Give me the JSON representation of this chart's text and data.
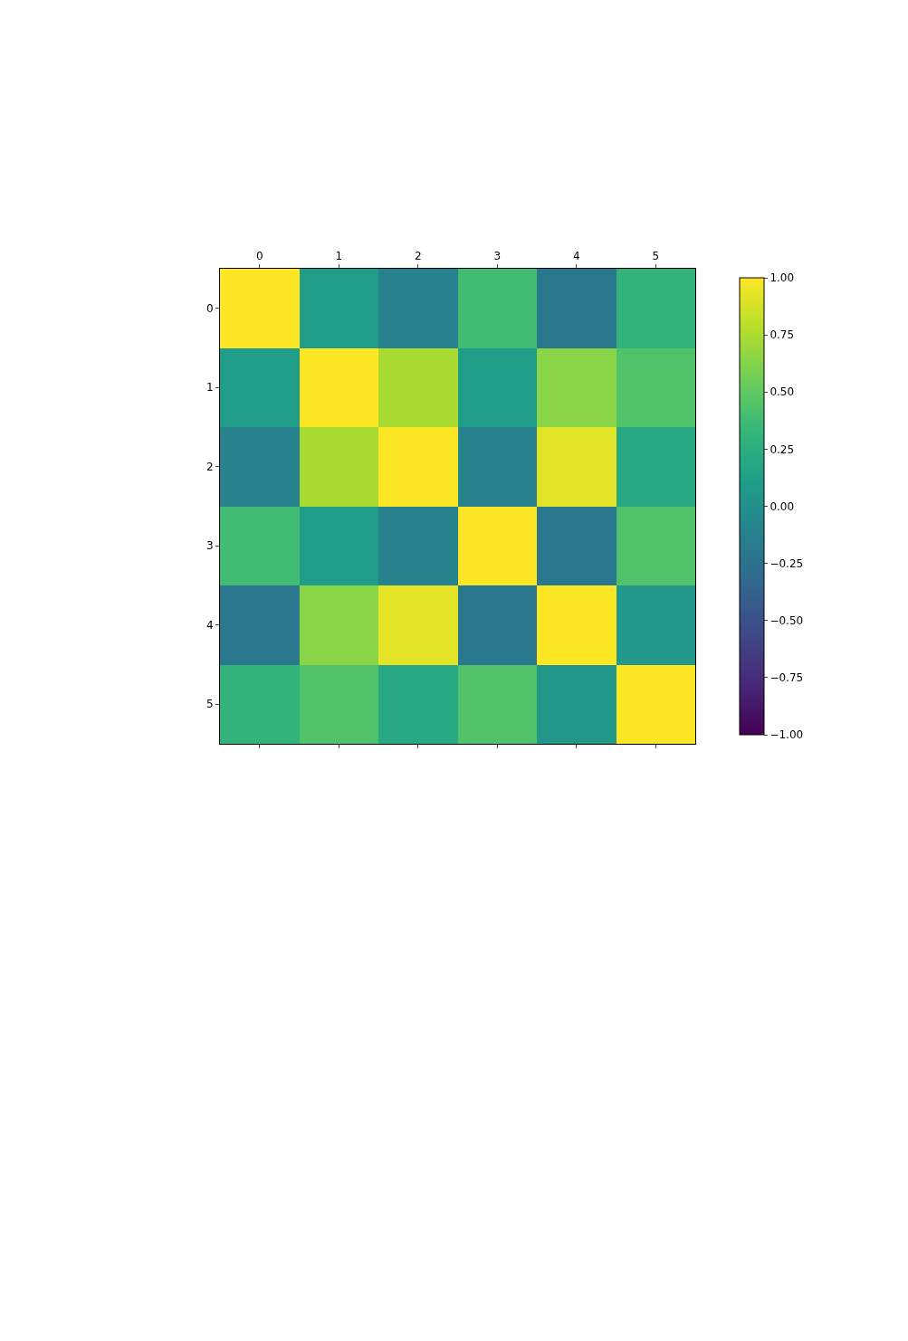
{
  "chart_data": {
    "type": "heatmap",
    "categories": [
      "0",
      "1",
      "2",
      "3",
      "4",
      "5"
    ],
    "y_categories": [
      "0",
      "1",
      "2",
      "3",
      "4",
      "5"
    ],
    "cells": [
      [
        1,
        0.1,
        -0.1,
        0.38,
        -0.2,
        0.3
      ],
      [
        0.1,
        1,
        0.74,
        0.1,
        0.64,
        0.44
      ],
      [
        -0.1,
        0.74,
        1,
        -0.1,
        0.92,
        0.2
      ],
      [
        0.38,
        0.1,
        -0.1,
        1,
        -0.2,
        0.44
      ],
      [
        -0.2,
        0.64,
        0.92,
        -0.2,
        1,
        0.06
      ],
      [
        0.3,
        0.44,
        0.2,
        0.44,
        0.06,
        1
      ]
    ],
    "clim": [
      -1,
      1
    ],
    "cticks": [
      {
        "value": 1,
        "label": "1.00"
      },
      {
        "value": 0.75,
        "label": "0.75"
      },
      {
        "value": 0.5,
        "label": "0.50"
      },
      {
        "value": 0.25,
        "label": "0.25"
      },
      {
        "value": 0,
        "label": "0.00"
      },
      {
        "value": -0.25,
        "label": "−0.25"
      },
      {
        "value": -0.5,
        "label": "−0.50"
      },
      {
        "value": -0.75,
        "label": "−0.75"
      },
      {
        "value": -1,
        "label": "−1.00"
      }
    ]
  }
}
